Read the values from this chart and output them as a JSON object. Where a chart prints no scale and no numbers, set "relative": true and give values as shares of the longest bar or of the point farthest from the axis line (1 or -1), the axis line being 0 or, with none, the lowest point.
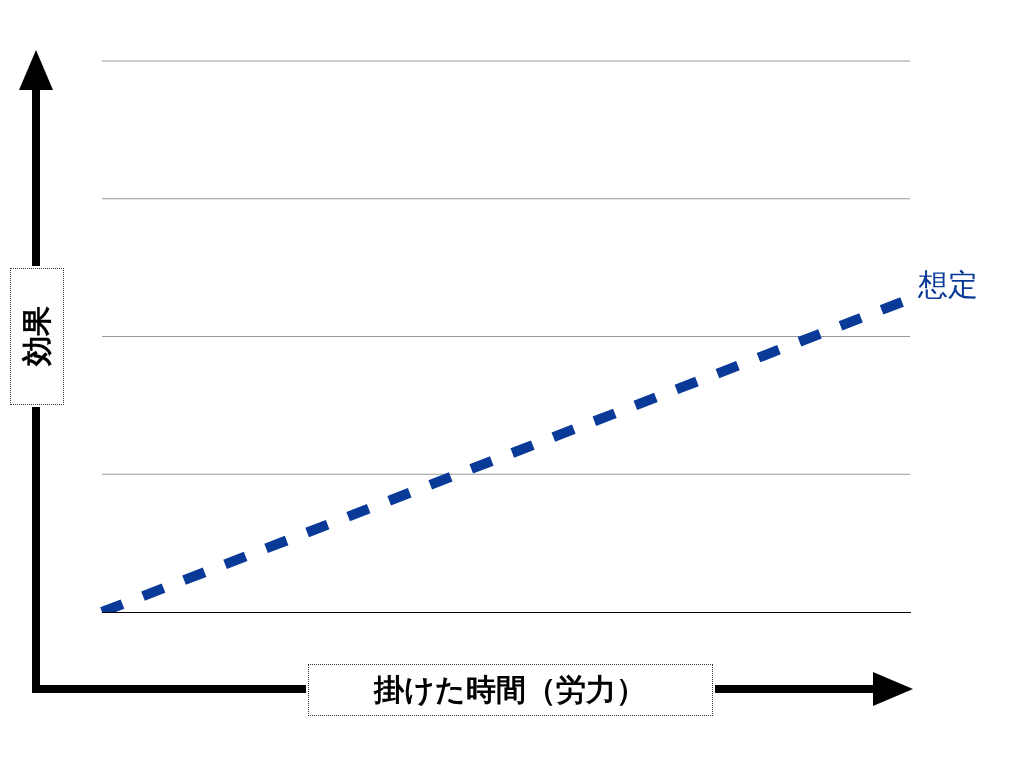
{
  "chart_data": {
    "type": "line",
    "xlabel": "掛けた時間（労力）",
    "ylabel": "効果",
    "categories": [
      null,
      null
    ],
    "relative": true,
    "legend": false,
    "marker": "none",
    "line_style": "dashed",
    "series": [
      {
        "name": "想定",
        "color": "#0a3a98",
        "values": [
          0,
          1
        ]
      }
    ],
    "ref_lines": [
      {
        "axis": "y",
        "value": 0.44,
        "color": "#999999"
      },
      {
        "axis": "y",
        "value": 0.88,
        "color": "#999999"
      },
      {
        "axis": "y",
        "value": 1.32,
        "color": "#999999"
      },
      {
        "axis": "y",
        "value": 1.76,
        "color": "#999999"
      }
    ]
  }
}
